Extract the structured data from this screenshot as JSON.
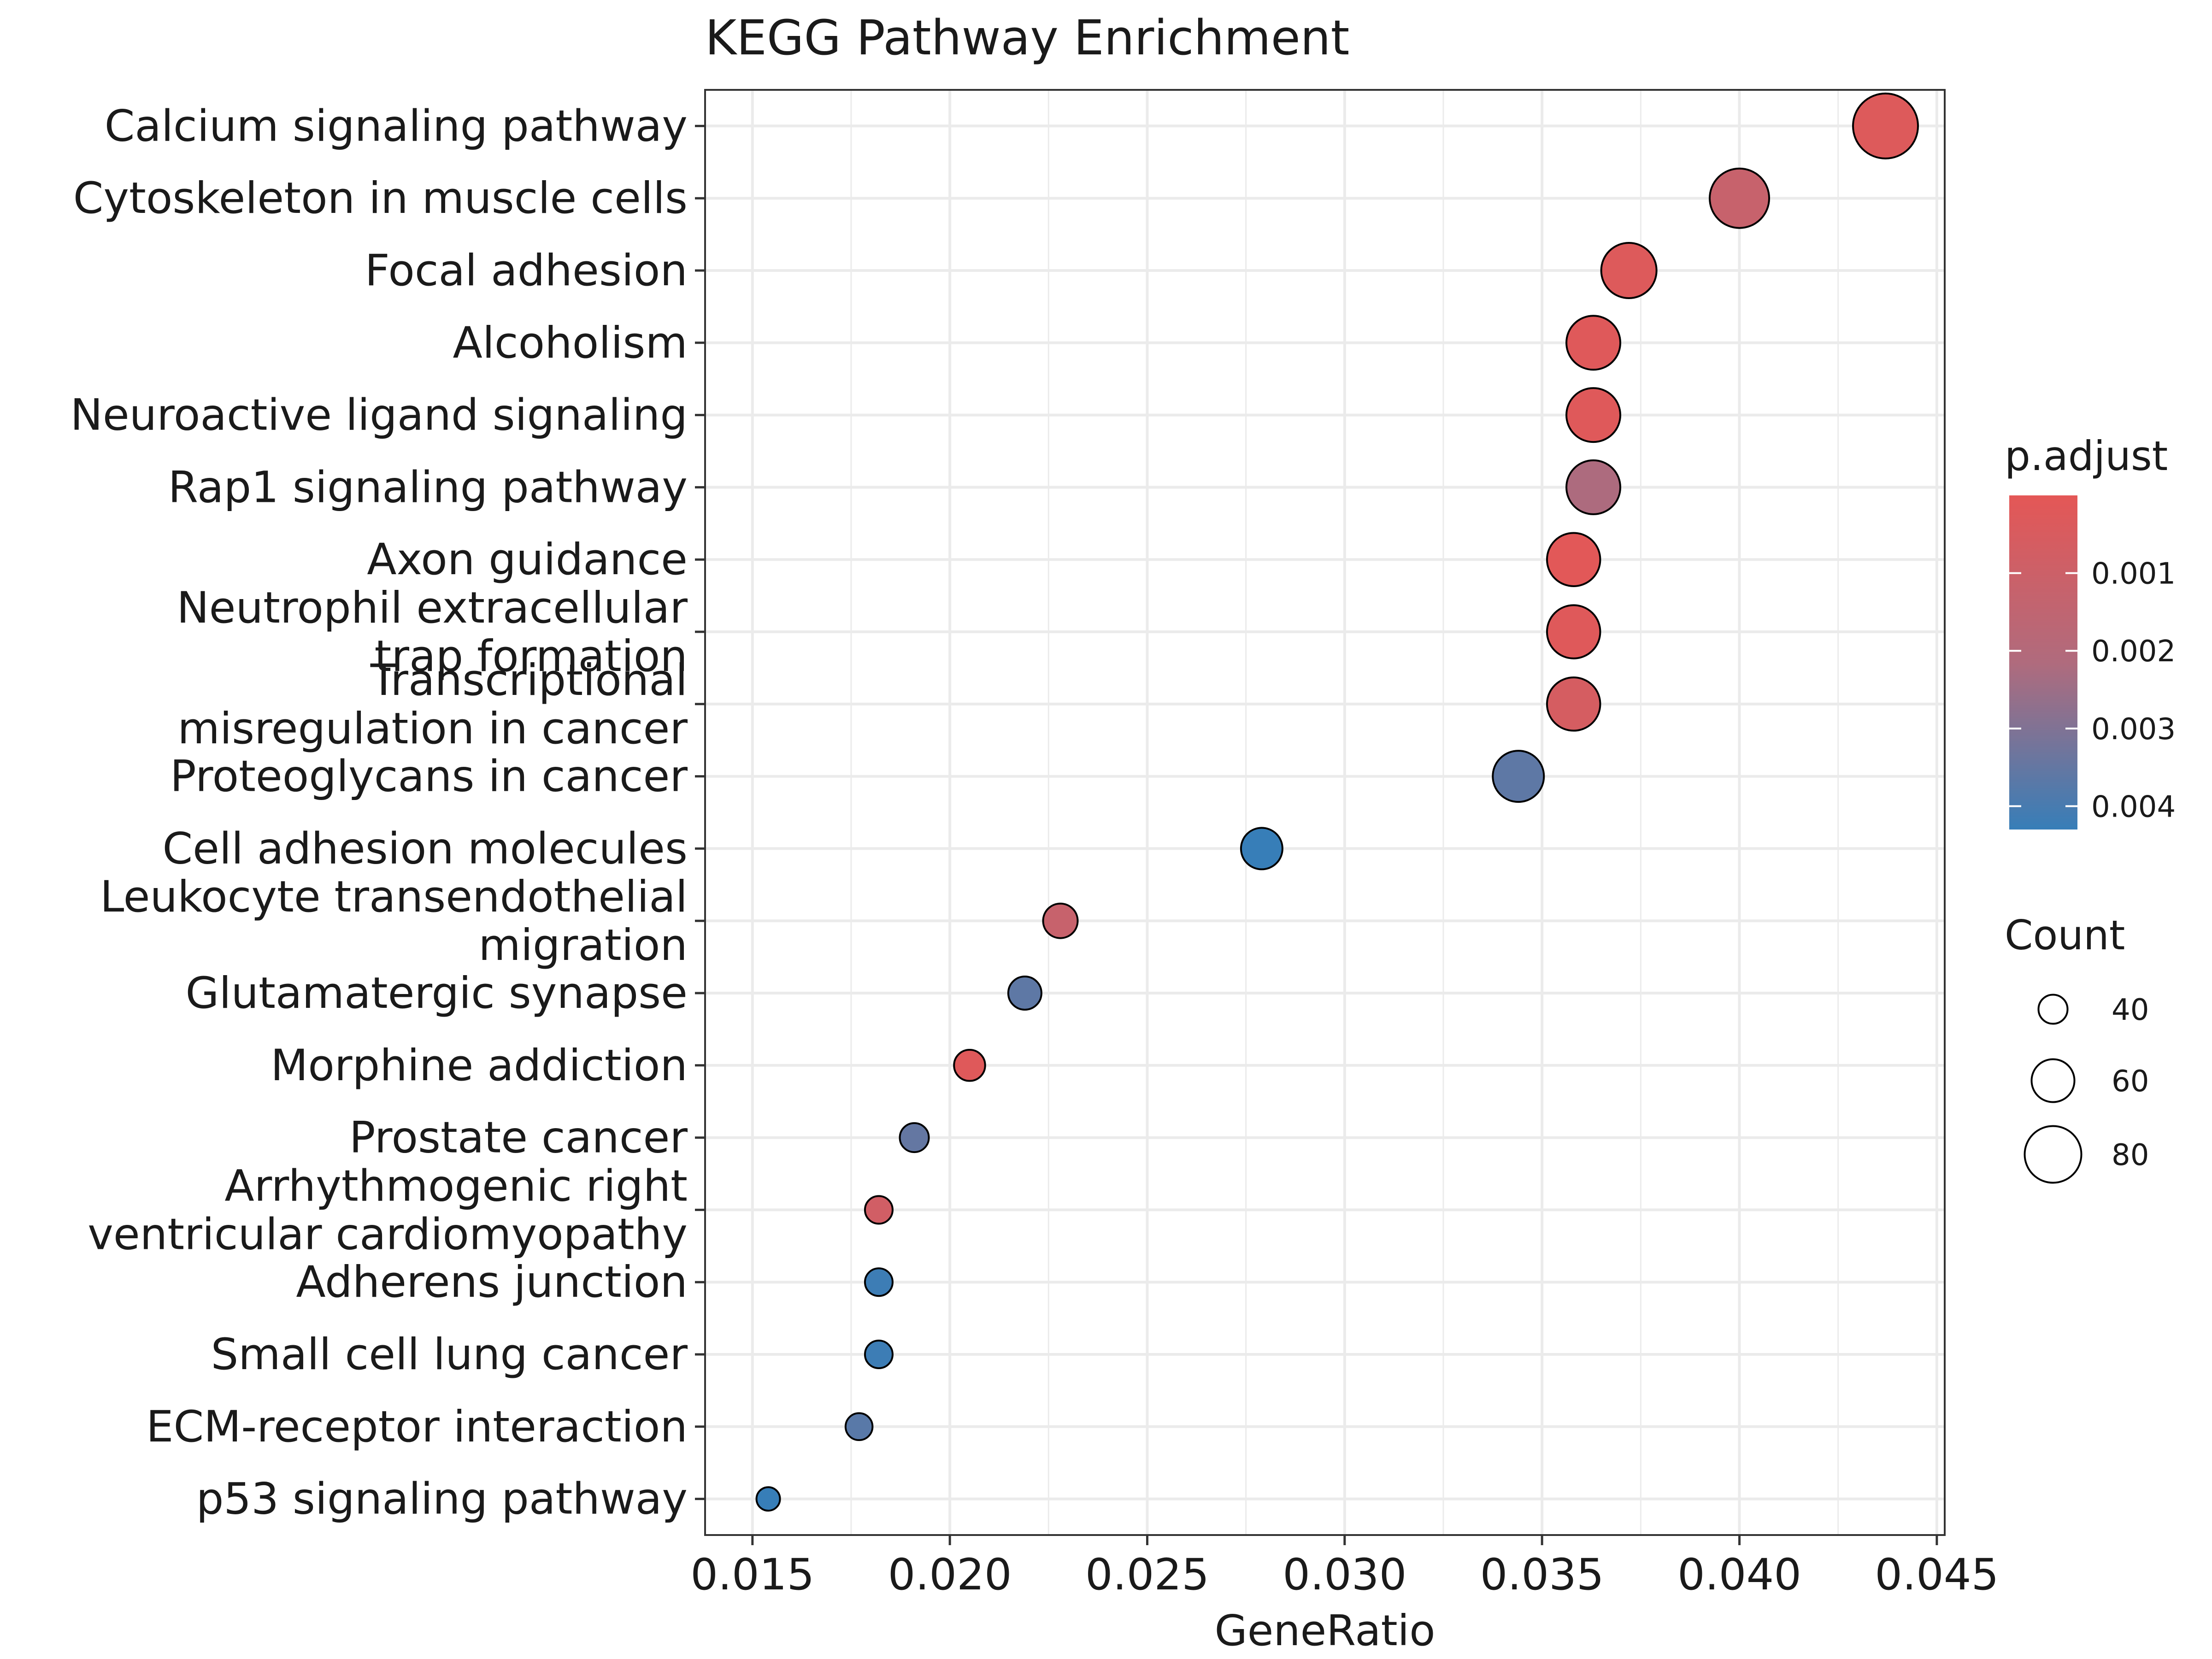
{
  "chart_data": {
    "type": "scatter",
    "title": "KEGG Pathway Enrichment",
    "xlabel": "GeneRatio",
    "ylabel": "",
    "xlim": [
      0.0138,
      0.0452
    ],
    "x_ticks": [
      "0.015",
      "0.020",
      "0.025",
      "0.030",
      "0.035",
      "0.040",
      "0.045"
    ],
    "x_tick_values": [
      0.015,
      0.02,
      0.025,
      0.03,
      0.035,
      0.04,
      0.045
    ],
    "grid": true,
    "points": [
      {
        "category": [
          "Calcium signaling pathway"
        ],
        "gene_ratio": 0.0437,
        "count": 92,
        "p_adjust": 0.0003
      },
      {
        "category": [
          "Cytoskeleton in muscle cells"
        ],
        "gene_ratio": 0.04,
        "count": 84,
        "p_adjust": 0.0012
      },
      {
        "category": [
          "Focal adhesion"
        ],
        "gene_ratio": 0.0372,
        "count": 78,
        "p_adjust": 0.0003
      },
      {
        "category": [
          "Alcoholism"
        ],
        "gene_ratio": 0.0363,
        "count": 76,
        "p_adjust": 0.0002
      },
      {
        "category": [
          "Neuroactive ligand signaling"
        ],
        "gene_ratio": 0.0363,
        "count": 76,
        "p_adjust": 0.0002
      },
      {
        "category": [
          "Rap1 signaling pathway"
        ],
        "gene_ratio": 0.0363,
        "count": 76,
        "p_adjust": 0.0022
      },
      {
        "category": [
          "Axon guidance"
        ],
        "gene_ratio": 0.0358,
        "count": 75,
        "p_adjust": 0.0001
      },
      {
        "category": [
          "Neutrophil extracellular",
          "trap formation"
        ],
        "gene_ratio": 0.0358,
        "count": 75,
        "p_adjust": 0.0002
      },
      {
        "category": [
          "Transcriptional",
          "misregulation in cancer"
        ],
        "gene_ratio": 0.0358,
        "count": 75,
        "p_adjust": 0.0006
      },
      {
        "category": [
          "Proteoglycans in cancer"
        ],
        "gene_ratio": 0.0344,
        "count": 72,
        "p_adjust": 0.0036
      },
      {
        "category": [
          "Cell adhesion molecules"
        ],
        "gene_ratio": 0.0279,
        "count": 58,
        "p_adjust": 0.0043
      },
      {
        "category": [
          "Leukocyte transendothelial",
          "migration"
        ],
        "gene_ratio": 0.0228,
        "count": 48,
        "p_adjust": 0.0012
      },
      {
        "category": [
          "Glutamatergic synapse"
        ],
        "gene_ratio": 0.0219,
        "count": 46,
        "p_adjust": 0.0036
      },
      {
        "category": [
          "Morphine addiction"
        ],
        "gene_ratio": 0.0205,
        "count": 43,
        "p_adjust": 0.0002
      },
      {
        "category": [
          "Prostate cancer"
        ],
        "gene_ratio": 0.0191,
        "count": 40,
        "p_adjust": 0.0035
      },
      {
        "category": [
          "Arrhythmogenic right",
          "ventricular cardiomyopathy"
        ],
        "gene_ratio": 0.0182,
        "count": 38,
        "p_adjust": 0.0008
      },
      {
        "category": [
          "Adherens junction"
        ],
        "gene_ratio": 0.0182,
        "count": 38,
        "p_adjust": 0.0042
      },
      {
        "category": [
          "Small cell lung cancer"
        ],
        "gene_ratio": 0.0182,
        "count": 38,
        "p_adjust": 0.0042
      },
      {
        "category": [
          "ECM-receptor interaction"
        ],
        "gene_ratio": 0.0177,
        "count": 37,
        "p_adjust": 0.0037
      },
      {
        "category": [
          "p53 signaling pathway"
        ],
        "gene_ratio": 0.0154,
        "count": 32,
        "p_adjust": 0.0044
      }
    ],
    "color_legend": {
      "title": "p.adjust",
      "labels": [
        "0.001",
        "0.002",
        "0.003",
        "0.004"
      ],
      "values": [
        0.001,
        0.002,
        0.003,
        0.004
      ],
      "domain": [
        0.0,
        0.0043
      ],
      "low_color": "#e45756",
      "high_color": "#377eb8",
      "mid_color": "#b06b7d"
    },
    "size_legend": {
      "title": "Count",
      "labels": [
        "40",
        "60",
        "80"
      ],
      "values": [
        40,
        60,
        80
      ]
    },
    "colors": {
      "point_stroke": "#000000",
      "grid_line": "#ebebeb",
      "panel_border": "#333333"
    }
  }
}
